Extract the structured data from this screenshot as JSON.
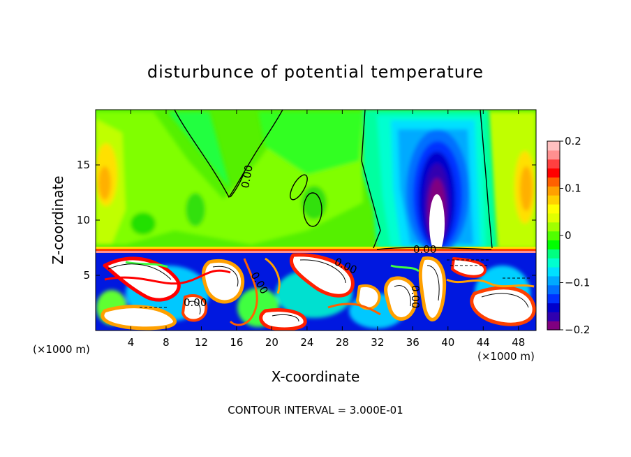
{
  "chart_data": {
    "type": "heatmap",
    "title": "disturbunce of potential temperature",
    "xlabel": "X-coordinate",
    "ylabel": "Z-coordinate",
    "x_units_left": "(×1000 m)",
    "x_units_right": "(×1000 m)",
    "xlim": [
      0,
      50
    ],
    "ylim": [
      0,
      20
    ],
    "x_ticks": [
      4,
      8,
      12,
      16,
      20,
      24,
      28,
      32,
      36,
      40,
      44,
      48
    ],
    "x_tick_labels": [
      "4",
      "8",
      "12",
      "16",
      "20",
      "24",
      "28",
      "32",
      "36",
      "40",
      "44",
      "48"
    ],
    "y_ticks": [
      5,
      10,
      15
    ],
    "y_tick_labels": [
      "5",
      "10",
      "15"
    ],
    "colorbar": {
      "range": [
        -0.2,
        0.2
      ],
      "ticks": [
        0.2,
        0.1,
        0,
        -0.1,
        -0.2
      ],
      "tick_labels": [
        "0.2",
        "0.1",
        "0",
        "−0.1",
        "−0.2"
      ],
      "colors": [
        "#800080",
        "#3000b0",
        "#0000cc",
        "#0030ff",
        "#0070ff",
        "#00aaff",
        "#00e0ff",
        "#00ffd0",
        "#00ff80",
        "#00ff00",
        "#50ff00",
        "#a0ff00",
        "#e0ff00",
        "#ffff00",
        "#ffd000",
        "#ffa000",
        "#ff6000",
        "#ff0000",
        "#ff4040",
        "#ff9090",
        "#ffc0c0"
      ]
    },
    "contour_labels": [
      {
        "text": "0.00",
        "x": 17,
        "z": 13.5
      },
      {
        "text": "0.00",
        "x": 18.3,
        "z": 4.5
      },
      {
        "text": "0.00",
        "x": 10.8,
        "z": 2.4
      },
      {
        "text": "0.00",
        "x": 28.5,
        "z": 6
      },
      {
        "text": "0.00",
        "x": 36.5,
        "z": 7.3
      },
      {
        "text": "0.00",
        "x": 35.4,
        "z": 2.7
      }
    ],
    "contour_interval_text": "CONTOUR INTERVAL = 3.000E-01"
  }
}
